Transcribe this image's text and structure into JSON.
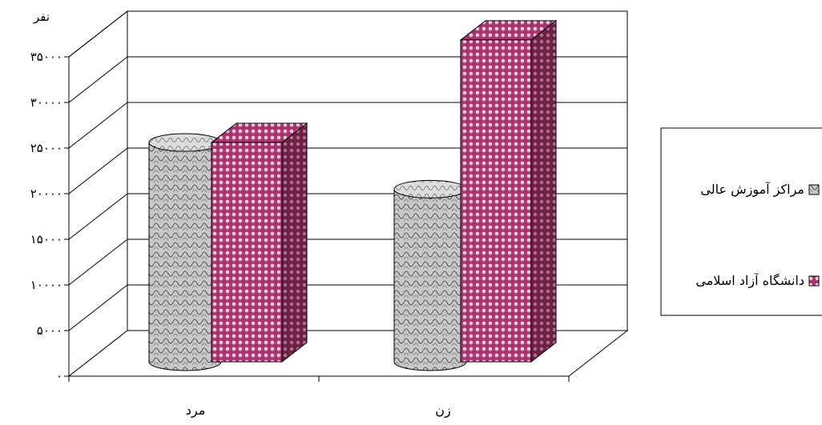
{
  "chart_data": {
    "type": "bar",
    "ylabel": "نفر",
    "ylim": [
      0,
      35000
    ],
    "yticks": [
      0,
      5000,
      10000,
      15000,
      20000,
      25000,
      30000,
      35000
    ],
    "ytick_labels": [
      "۰",
      "۵۰۰۰",
      "۱۰۰۰۰",
      "۱۵۰۰۰",
      "۲۰۰۰۰",
      "۲۵۰۰۰",
      "۳۰۰۰۰",
      "۳۵۰۰۰"
    ],
    "categories": [
      "مرد",
      "زن"
    ],
    "series": [
      {
        "name": "مراکز آموزش عالی",
        "shape": "cylinder",
        "color": "#b4b4b4",
        "values": [
          23500,
          18500
        ]
      },
      {
        "name": "دانشگاه آزاد اسلامی",
        "shape": "box",
        "color": "#b03a78",
        "values": [
          23500,
          34500
        ]
      }
    ],
    "grid": true,
    "legend_position": "right"
  }
}
